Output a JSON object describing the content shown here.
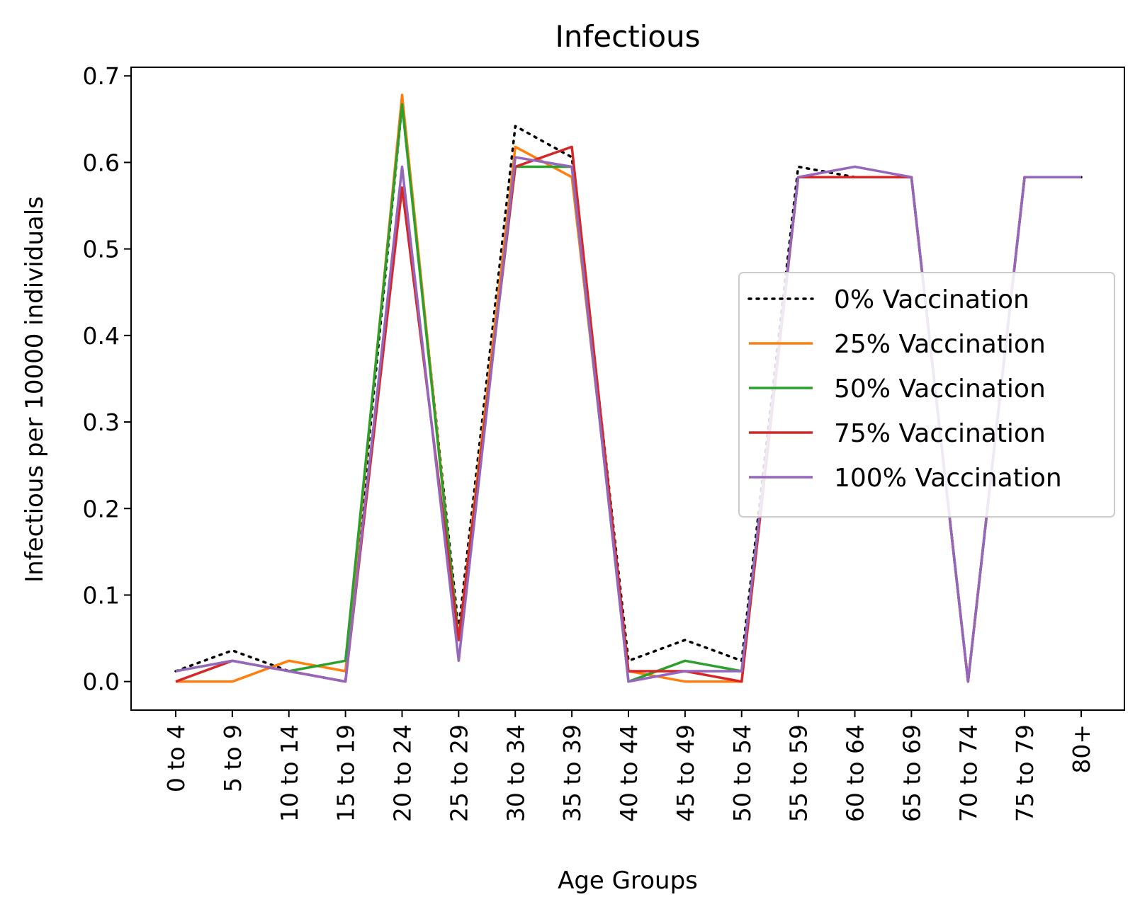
{
  "chart_data": {
    "type": "line",
    "title": "Infectious",
    "xlabel": "Age Groups",
    "ylabel": "Infectious per 10000 individuals",
    "ylim": [
      -0.033,
      0.71
    ],
    "yticks": [
      "0.0",
      "0.1",
      "0.2",
      "0.3",
      "0.4",
      "0.5",
      "0.6",
      "0.7"
    ],
    "categories": [
      "0 to 4",
      "5 to 9",
      "10 to 14",
      "15 to 19",
      "20 to 24",
      "25 to 29",
      "30 to 34",
      "35 to 39",
      "40 to 44",
      "45 to 49",
      "50 to 54",
      "55 to 59",
      "60 to 64",
      "65 to 69",
      "70 to 74",
      "75 to 79",
      "80+"
    ],
    "legend_position": "center-right",
    "grid": false,
    "series": [
      {
        "name": "0% Vaccination",
        "color": "#000000",
        "style": "dotted",
        "values": [
          0.012,
          0.036,
          0.012,
          0.0,
          0.667,
          0.06,
          0.642,
          0.606,
          0.024,
          0.048,
          0.024,
          0.595,
          0.583,
          0.583,
          0.0,
          0.583,
          0.583
        ]
      },
      {
        "name": "25% Vaccination",
        "color": "#ff7f0e",
        "style": "solid",
        "values": [
          0.0,
          0.0,
          0.024,
          0.012,
          0.678,
          0.048,
          0.618,
          0.583,
          0.012,
          0.0,
          0.0,
          0.583,
          0.583,
          0.583,
          0.0,
          0.583,
          0.583
        ]
      },
      {
        "name": "50% Vaccination",
        "color": "#2ca02c",
        "style": "solid",
        "values": [
          0.012,
          0.024,
          0.012,
          0.024,
          0.667,
          0.048,
          0.595,
          0.595,
          0.0,
          0.024,
          0.012,
          0.583,
          0.583,
          0.583,
          0.0,
          0.583,
          0.583
        ]
      },
      {
        "name": "75% Vaccination",
        "color": "#d62728",
        "style": "solid",
        "values": [
          0.0,
          0.024,
          0.012,
          0.0,
          0.571,
          0.048,
          0.595,
          0.618,
          0.012,
          0.012,
          0.0,
          0.583,
          0.583,
          0.583,
          0.0,
          0.583,
          0.583
        ]
      },
      {
        "name": "100% Vaccination",
        "color": "#9467bd",
        "style": "solid",
        "values": [
          0.012,
          0.024,
          0.012,
          0.0,
          0.595,
          0.024,
          0.606,
          0.595,
          0.0,
          0.012,
          0.012,
          0.583,
          0.595,
          0.583,
          0.0,
          0.583,
          0.583
        ]
      }
    ]
  }
}
